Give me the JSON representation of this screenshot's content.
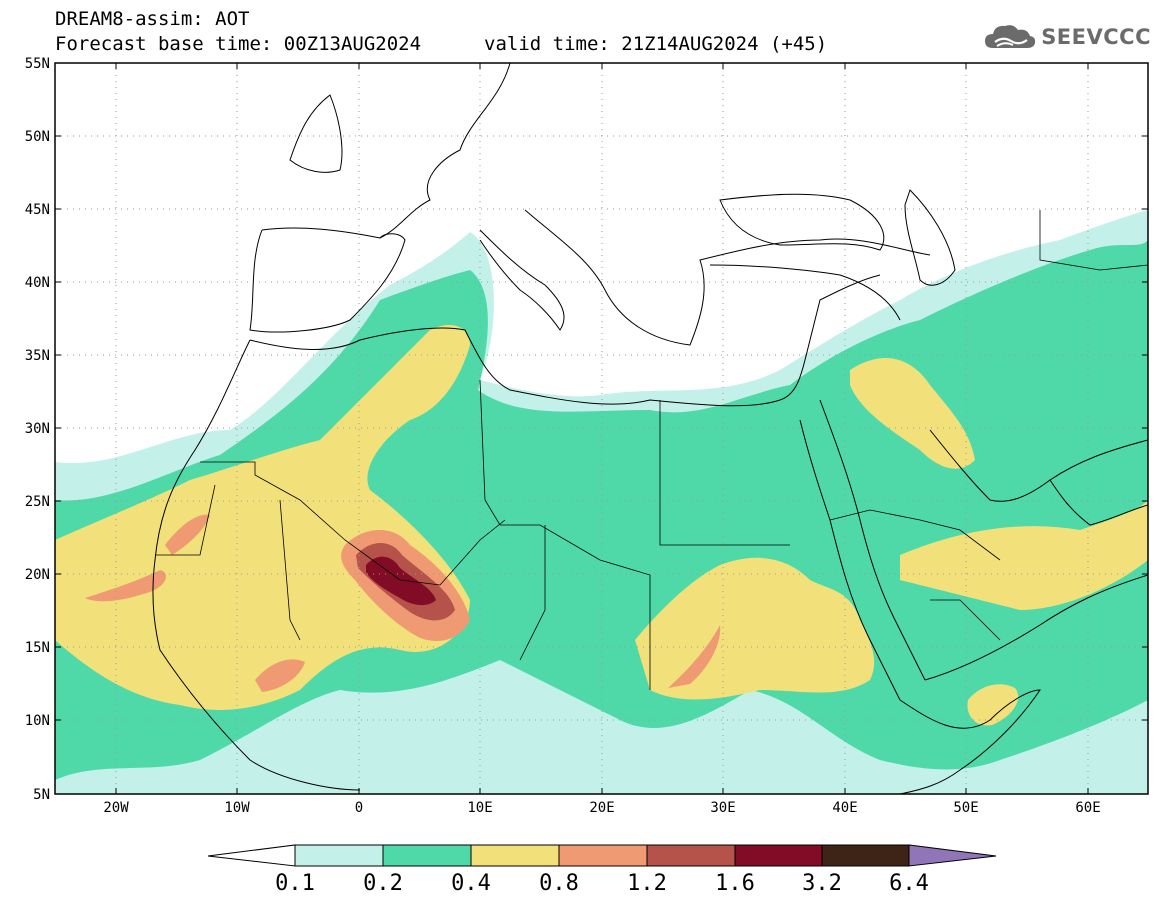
{
  "header": {
    "title": "DREAM8-assim: AOT",
    "base_time": "Forecast base time: 00Z13AUG2024",
    "valid_time": "valid time: 21Z14AUG2024 (+45)"
  },
  "logo": {
    "text": "SEEVCCC",
    "icon": "cloud-icon"
  },
  "map": {
    "lat_labels": [
      "55N",
      "50N",
      "45N",
      "40N",
      "35N",
      "30N",
      "25N",
      "20N",
      "15N",
      "10N",
      "5N"
    ],
    "lon_labels": [
      "20W",
      "10W",
      "0",
      "10E",
      "20E",
      "30E",
      "40E",
      "50E",
      "60E"
    ],
    "lon_range": [
      -25,
      65
    ],
    "lat_range": [
      5,
      55
    ]
  },
  "colorbar": {
    "labels": [
      "0.1",
      "0.2",
      "0.4",
      "0.8",
      "1.2",
      "1.6",
      "3.2",
      "6.4"
    ],
    "colors": [
      "#c4f0ea",
      "#4fd9a8",
      "#f2e07a",
      "#ef9a72",
      "#b5524a",
      "#820b26",
      "#3d2417",
      "#9076b8"
    ]
  }
}
